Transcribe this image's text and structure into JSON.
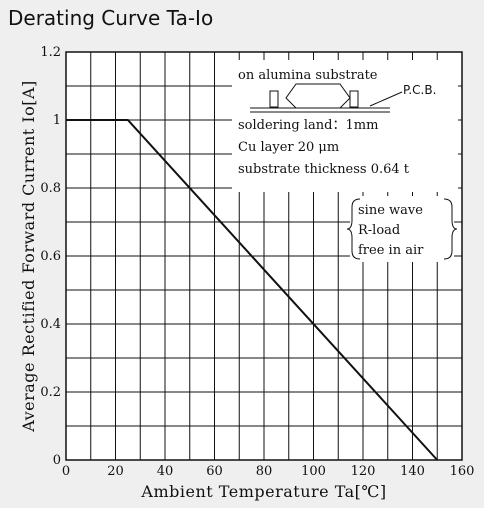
{
  "chart_data": {
    "type": "line",
    "title": "Derating Curve Ta-Io",
    "xlabel": "Ambient Temperature Ta[℃]",
    "ylabel": "Average Rectified Forward Current Io[A]",
    "xlim": [
      0,
      160
    ],
    "ylim": [
      0,
      1.2
    ],
    "x_ticks": [
      0,
      20,
      40,
      60,
      80,
      100,
      120,
      140,
      160
    ],
    "y_ticks": [
      0,
      0.2,
      0.4,
      0.6,
      0.8,
      1,
      1.2
    ],
    "x_tick_labels": [
      "0",
      "20",
      "40",
      "60",
      "80",
      "100",
      "120",
      "140",
      "160"
    ],
    "y_tick_labels": [
      "0",
      "0.2",
      "0.4",
      "0.6",
      "0.8",
      "1",
      "1.2"
    ],
    "minor_grid_step_x": 10,
    "minor_grid_step_y": 0.1,
    "grid": true,
    "series": [
      {
        "x": [
          0,
          25,
          150
        ],
        "y": [
          1.0,
          1.0,
          0.0
        ]
      }
    ],
    "annotations": {
      "substrate_title": "on alumina substrate",
      "pcb_label": "P.C.B.",
      "lines": [
        "soldering land：1mm",
        "Cu layer 20 μm",
        "substrate thickness 0.64 t"
      ],
      "conditions": [
        "sine wave",
        "R-load",
        "free in air"
      ]
    }
  }
}
